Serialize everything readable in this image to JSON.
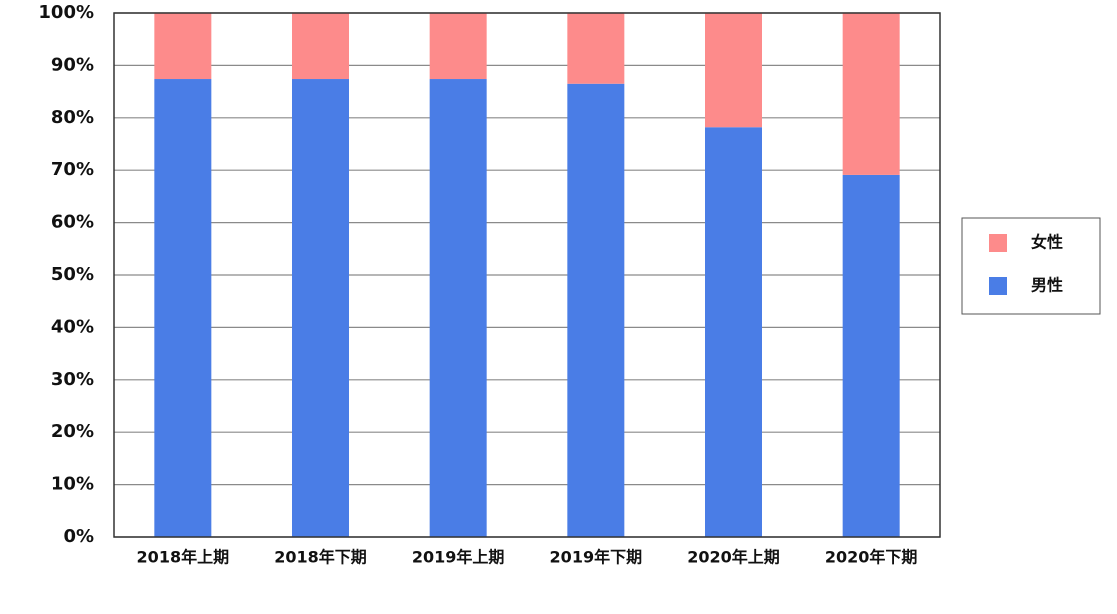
{
  "chart_data": {
    "type": "stacked_bar",
    "categories": [
      "2018年上期",
      "2018年下期",
      "2019年上期",
      "2019年下期",
      "2020年上期",
      "2020年下期"
    ],
    "series": [
      {
        "name": "男性",
        "color": "#4a7de6",
        "values": [
          87.4,
          87.4,
          87.4,
          86.5,
          78.2,
          69.1
        ]
      },
      {
        "name": "女性",
        "color": "#fd8b8b",
        "values": [
          12.6,
          12.6,
          12.6,
          13.5,
          21.8,
          30.9
        ]
      }
    ],
    "ylim": [
      0,
      100
    ],
    "yticks": [
      {
        "value": 0,
        "label": "0%"
      },
      {
        "value": 10,
        "label": "10%"
      },
      {
        "value": 20,
        "label": "20%"
      },
      {
        "value": 30,
        "label": "30%"
      },
      {
        "value": 40,
        "label": "40%"
      },
      {
        "value": 50,
        "label": "50%"
      },
      {
        "value": 60,
        "label": "60%"
      },
      {
        "value": 70,
        "label": "70%"
      },
      {
        "value": 80,
        "label": "80%"
      },
      {
        "value": 90,
        "label": "90%"
      },
      {
        "value": 100,
        "label": "100%"
      }
    ],
    "grid": true,
    "legend": "right"
  }
}
